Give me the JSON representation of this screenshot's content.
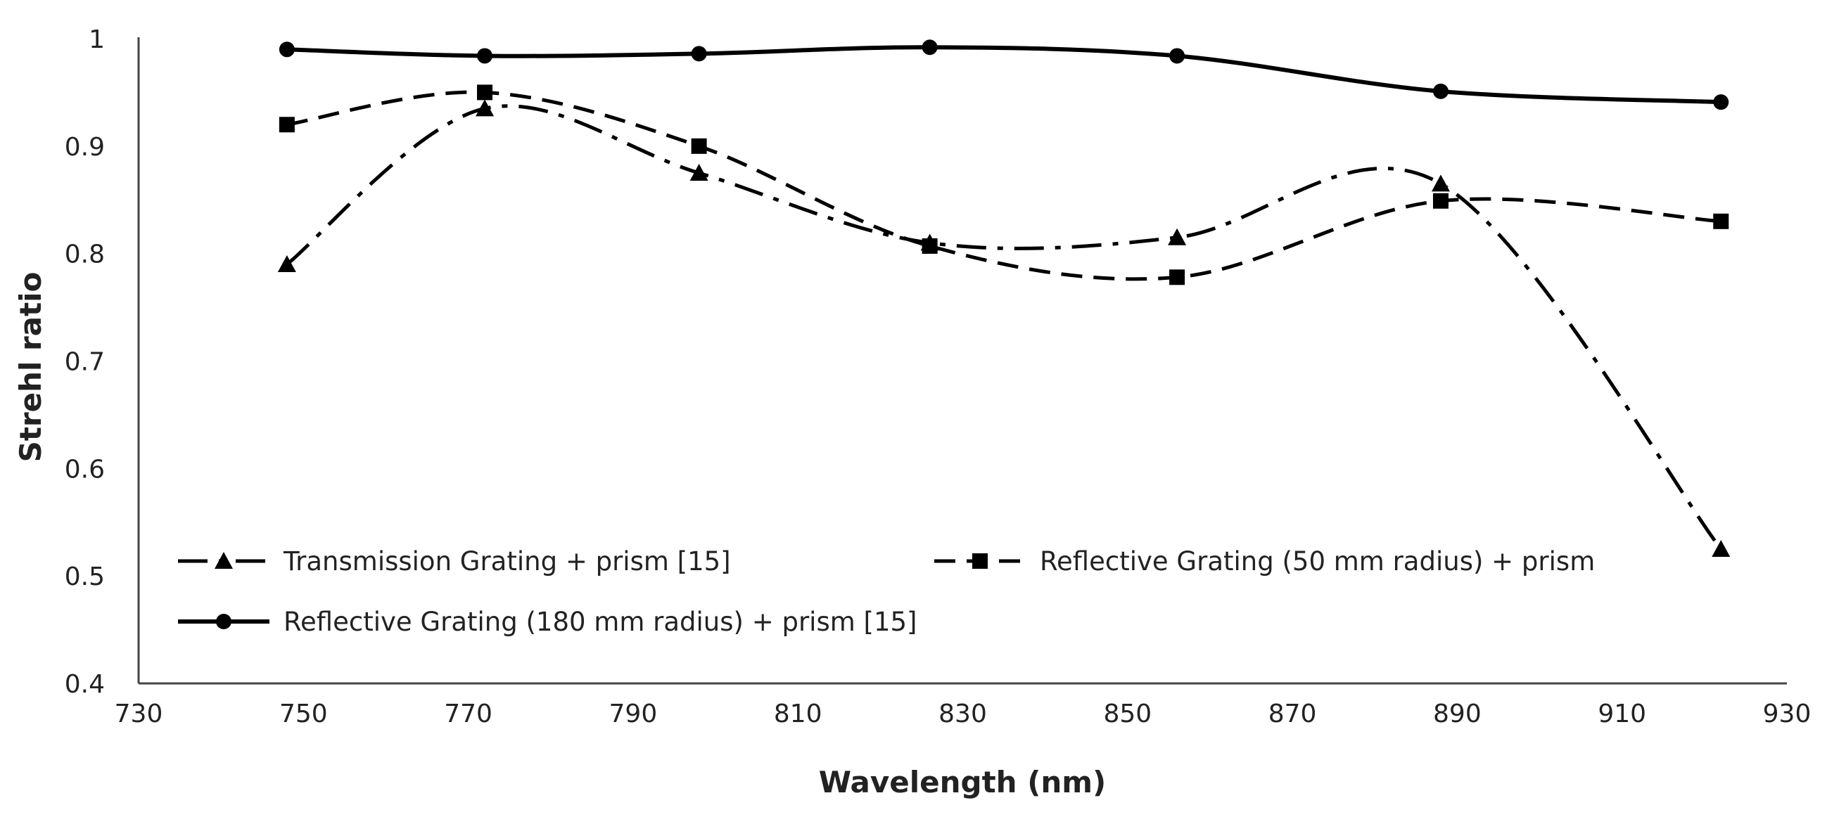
{
  "chart_data": {
    "type": "line",
    "title": "",
    "xlabel": "Wavelength (nm)",
    "ylabel": "Strehl ratio",
    "xlim": [
      730,
      930
    ],
    "ylim": [
      0.4,
      1.0
    ],
    "xticks": [
      730,
      750,
      770,
      790,
      810,
      830,
      850,
      870,
      890,
      910,
      930
    ],
    "yticks": [
      0.4,
      0.5,
      0.6,
      0.7,
      0.8,
      0.9,
      1.0
    ],
    "xtick_labels": [
      "730",
      "750",
      "770",
      "790",
      "810",
      "830",
      "850",
      "870",
      "890",
      "910",
      "930"
    ],
    "ytick_labels": [
      "0.4",
      "0.5",
      "0.6",
      "0.7",
      "0.8",
      "0.9",
      "1"
    ],
    "grid": false,
    "legend_position": "lower-left",
    "series": [
      {
        "name": "Transmission Grating + prism [15]",
        "style": "dashdot",
        "marker": "triangle",
        "color": "#000000",
        "x": [
          748,
          772,
          798,
          826,
          856,
          888,
          922
        ],
        "values": [
          0.79,
          0.935,
          0.875,
          0.81,
          0.815,
          0.865,
          0.525
        ]
      },
      {
        "name": "Reflective Grating (50 mm radius) + prism",
        "style": "dashed",
        "marker": "square",
        "color": "#000000",
        "x": [
          748,
          772,
          798,
          826,
          856,
          888,
          922
        ],
        "values": [
          0.92,
          0.95,
          0.9,
          0.807,
          0.778,
          0.849,
          0.83
        ]
      },
      {
        "name": "Reflective Grating (180 mm radius) + prism [15]",
        "style": "solid",
        "marker": "circle",
        "color": "#000000",
        "x": [
          748,
          772,
          798,
          826,
          856,
          888,
          922
        ],
        "values": [
          0.99,
          0.984,
          0.986,
          0.992,
          0.984,
          0.951,
          0.941
        ]
      }
    ]
  }
}
